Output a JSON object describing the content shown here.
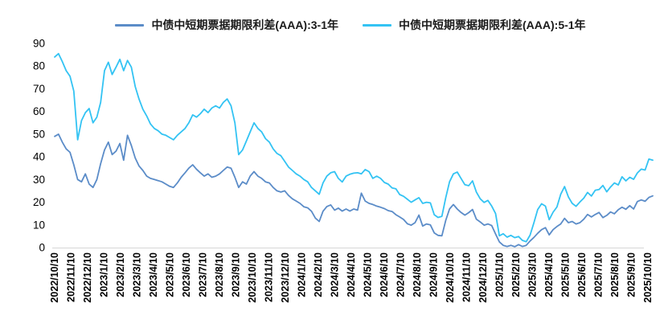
{
  "chart_data": {
    "type": "line",
    "title": "",
    "legend_position": "top",
    "grid": false,
    "background_color": "#ffffff",
    "axis_line_color": "#d6d6d6",
    "tick_text_color": "#000000",
    "ylim": [
      0,
      90
    ],
    "y_ticks": [
      0,
      10,
      20,
      30,
      40,
      50,
      60,
      70,
      80,
      90
    ],
    "x_tick_labels": [
      "2022/10/10",
      "2022/11/10",
      "2022/12/10",
      "2023/1/10",
      "2023/2/10",
      "2023/3/10",
      "2023/4/10",
      "2023/5/10",
      "2023/6/10",
      "2023/7/10",
      "2023/8/10",
      "2023/9/10",
      "2023/10/10",
      "2023/11/10",
      "2023/12/10",
      "2024/1/10",
      "2024/2/10",
      "2024/3/10",
      "2024/4/10",
      "2024/5/10",
      "2024/6/10",
      "2024/7/10",
      "2024/8/10",
      "2024/9/10",
      "2024/10/10",
      "2024/11/10",
      "2024/12/10",
      "2025/1/10",
      "2025/2/10",
      "2025/3/10",
      "2025/4/10",
      "2025/5/10",
      "2025/6/10",
      "2025/7/10",
      "2025/8/10",
      "2025/9/10",
      "2025/10/10"
    ],
    "series": [
      {
        "name": "中债中短期票据期限利差(AAA):3-1年",
        "color": "#5b8cc8",
        "values": [
          49.0,
          50.0,
          46.5,
          43.5,
          42.0,
          36.5,
          30.0,
          29.0,
          32.5,
          28.0,
          26.5,
          30.0,
          37.0,
          43.0,
          46.5,
          41.0,
          42.5,
          45.9,
          38.5,
          49.5,
          45.0,
          39.5,
          36.0,
          34.0,
          31.5,
          30.5,
          30.0,
          29.5,
          29.0,
          28.0,
          27.0,
          26.5,
          28.5,
          31.0,
          33.0,
          35.0,
          36.5,
          34.5,
          33.0,
          31.5,
          32.5,
          31.0,
          31.5,
          32.5,
          34.0,
          35.5,
          35.0,
          31.0,
          26.5,
          29.0,
          28.0,
          31.5,
          33.5,
          31.5,
          30.5,
          29.0,
          28.5,
          26.5,
          25.0,
          24.5,
          25.0,
          23.0,
          21.5,
          20.5,
          19.5,
          18.0,
          17.5,
          16.0,
          13.0,
          11.5,
          16.0,
          18.1,
          18.8,
          16.5,
          17.4,
          16.1,
          17.0,
          16.1,
          17.0,
          16.5,
          24.0,
          20.5,
          19.5,
          19.0,
          18.3,
          17.8,
          17.2,
          16.3,
          15.9,
          14.5,
          13.5,
          12.4,
          10.5,
          9.9,
          11.0,
          14.3,
          9.5,
          10.4,
          10.0,
          6.5,
          5.4,
          5.2,
          12.0,
          17.0,
          19.0,
          17.0,
          15.5,
          14.3,
          15.4,
          16.8,
          12.5,
          11.3,
          9.9,
          10.4,
          9.7,
          6.0,
          2.5,
          1.0,
          0.5,
          1.0,
          0.4,
          1.3,
          0.5,
          1.0,
          2.9,
          4.5,
          6.3,
          7.9,
          8.8,
          5.6,
          7.9,
          9.3,
          10.4,
          12.9,
          11.0,
          11.5,
          10.4,
          11.0,
          12.5,
          14.6,
          13.5,
          14.6,
          15.5,
          13.2,
          14.2,
          15.7,
          14.9,
          16.7,
          17.8,
          16.9,
          18.5,
          17.0,
          20.3,
          21.0,
          20.4,
          22.1,
          22.8
        ]
      },
      {
        "name": "中债中短期票据期限利差(AAA):5-1年",
        "color": "#33c3f3",
        "values": [
          84.0,
          85.5,
          82.0,
          78.0,
          75.5,
          69.0,
          47.5,
          56.0,
          59.5,
          61.3,
          55.0,
          57.5,
          64.0,
          78.0,
          81.7,
          76.3,
          79.5,
          83.0,
          78.0,
          82.5,
          79.5,
          71.0,
          65.5,
          61.0,
          58.0,
          54.5,
          52.5,
          51.5,
          50.0,
          49.5,
          48.5,
          47.5,
          49.5,
          51.0,
          52.5,
          55.0,
          58.5,
          57.5,
          59.0,
          61.0,
          59.5,
          61.5,
          62.5,
          61.5,
          64.0,
          65.5,
          62.5,
          55.0,
          41.0,
          43.0,
          47.0,
          51.0,
          55.0,
          52.5,
          51.0,
          48.0,
          46.5,
          43.5,
          41.5,
          40.5,
          38.0,
          35.5,
          34.0,
          32.5,
          31.5,
          30.0,
          29.0,
          26.5,
          25.0,
          23.5,
          28.5,
          31.5,
          33.0,
          33.5,
          30.5,
          28.9,
          31.5,
          32.3,
          32.8,
          33.0,
          32.5,
          34.4,
          33.5,
          30.5,
          31.5,
          30.5,
          28.7,
          28.0,
          26.3,
          25.9,
          23.4,
          22.6,
          21.3,
          20.0,
          21.0,
          22.0,
          19.5,
          20.0,
          19.7,
          14.5,
          13.3,
          13.8,
          22.0,
          29.0,
          32.5,
          33.3,
          30.5,
          27.7,
          27.3,
          29.4,
          24.5,
          21.5,
          19.9,
          20.8,
          18.3,
          15.0,
          5.2,
          6.1,
          4.6,
          5.4,
          4.4,
          4.9,
          3.2,
          2.6,
          5.5,
          11.0,
          16.8,
          19.3,
          18.3,
          12.3,
          15.6,
          17.9,
          23.5,
          26.9,
          22.3,
          19.5,
          18.2,
          20.1,
          21.8,
          24.3,
          22.7,
          25.3,
          25.6,
          27.4,
          24.6,
          26.7,
          28.5,
          27.6,
          31.2,
          29.4,
          31.0,
          30.1,
          32.9,
          34.6,
          34.2,
          39.0,
          38.5
        ]
      }
    ]
  }
}
